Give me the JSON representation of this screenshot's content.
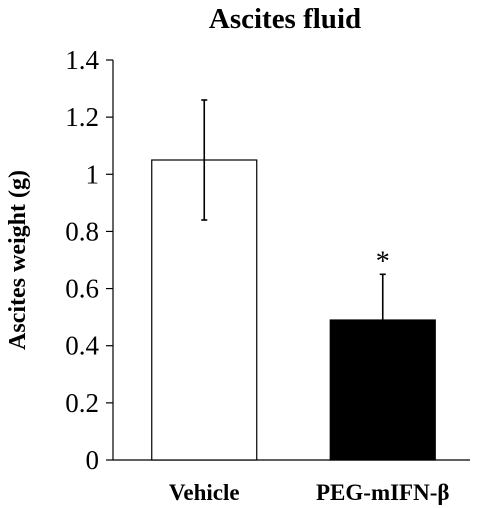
{
  "chart_data": {
    "type": "bar",
    "title": "Ascites fluid",
    "xlabel": "",
    "ylabel": "Ascites weight (g)",
    "ylim": [
      0,
      1.4
    ],
    "yticks": [
      "0",
      "0.2",
      "0.4",
      "0.6",
      "0.8",
      "1",
      "1.2",
      "1.4"
    ],
    "categories": [
      "Vehicle",
      "PEG-mIFN-β"
    ],
    "values": [
      1.05,
      0.49
    ],
    "errors": [
      0.21,
      0.16
    ],
    "bar_colors": [
      "#ffffff",
      "#000000"
    ],
    "annotations": [
      "",
      "*"
    ],
    "grid": false,
    "legend": "none"
  }
}
